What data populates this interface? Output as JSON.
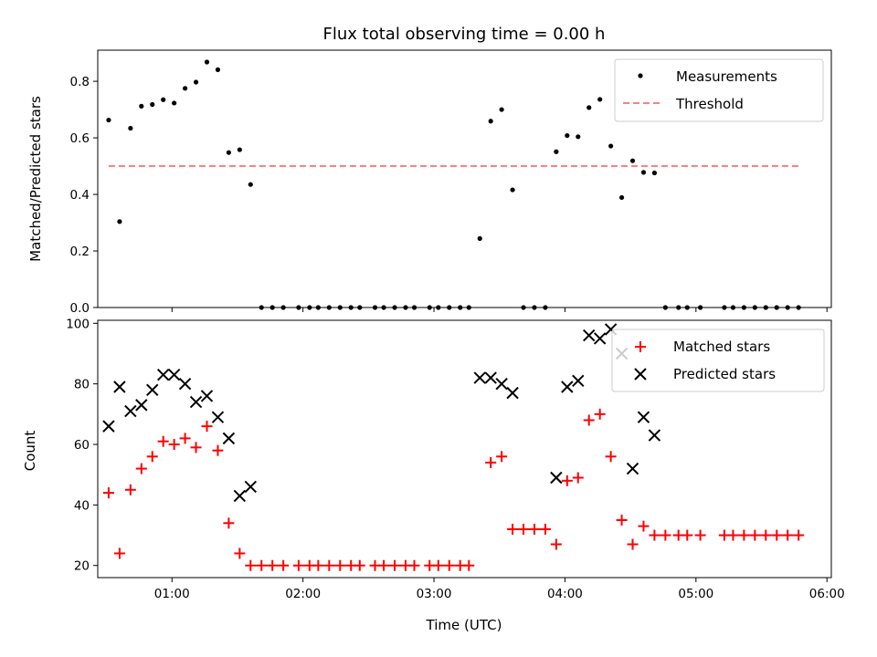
{
  "chart_data": [
    {
      "type": "scatter",
      "title": "Flux total observing time = 0.00 h",
      "xlabel": "",
      "ylabel": "Matched/Predicted stars",
      "xlim": [
        "00:26",
        "06:02"
      ],
      "ylim": [
        0,
        0.91
      ],
      "yticks": [
        0.0,
        0.2,
        0.4,
        0.6,
        0.8
      ],
      "ytick_labels": [
        "0.0",
        "0.2",
        "0.4",
        "0.6",
        "0.8"
      ],
      "xticks": [
        "01:00",
        "02:00",
        "03:00",
        "04:00",
        "05:00",
        "06:00"
      ],
      "grid": false,
      "legend_position": "top-right",
      "series": [
        {
          "name": "Measurements",
          "marker": "dot",
          "color": "#000000",
          "points": [
            [
              "00:31",
              0.663
            ],
            [
              "00:36",
              0.304
            ],
            [
              "00:41",
              0.634
            ],
            [
              "00:46",
              0.712
            ],
            [
              "00:51",
              0.718
            ],
            [
              "00:56",
              0.735
            ],
            [
              "01:01",
              0.723
            ],
            [
              "01:06",
              0.775
            ],
            [
              "01:11",
              0.797
            ],
            [
              "01:16",
              0.868
            ],
            [
              "01:21",
              0.841
            ],
            [
              "01:26",
              0.548
            ],
            [
              "01:31",
              0.558
            ],
            [
              "01:36",
              0.435
            ],
            [
              "01:41",
              0
            ],
            [
              "01:46",
              0
            ],
            [
              "01:51",
              0
            ],
            [
              "01:58",
              0
            ],
            [
              "02:03",
              0
            ],
            [
              "02:07",
              0
            ],
            [
              "02:12",
              0
            ],
            [
              "02:17",
              0
            ],
            [
              "02:22",
              0
            ],
            [
              "02:26",
              0
            ],
            [
              "02:33",
              0
            ],
            [
              "02:37",
              0
            ],
            [
              "02:42",
              0
            ],
            [
              "02:47",
              0
            ],
            [
              "02:51",
              0
            ],
            [
              "02:58",
              0
            ],
            [
              "03:02",
              0
            ],
            [
              "03:07",
              0
            ],
            [
              "03:12",
              0
            ],
            [
              "03:16",
              0
            ],
            [
              "03:21",
              0.244
            ],
            [
              "03:26",
              0.659
            ],
            [
              "03:31",
              0.7
            ],
            [
              "03:36",
              0.416
            ],
            [
              "03:41",
              0
            ],
            [
              "03:46",
              0
            ],
            [
              "03:51",
              0
            ],
            [
              "03:56",
              0.551
            ],
            [
              "04:01",
              0.608
            ],
            [
              "04:06",
              0.604
            ],
            [
              "04:11",
              0.707
            ],
            [
              "04:16",
              0.736
            ],
            [
              "04:21",
              0.571
            ],
            [
              "04:26",
              0.389
            ],
            [
              "04:31",
              0.519
            ],
            [
              "04:36",
              0.478
            ],
            [
              "04:41",
              0.476
            ],
            [
              "04:46",
              0
            ],
            [
              "04:52",
              0
            ],
            [
              "04:56",
              0
            ],
            [
              "05:02",
              0
            ],
            [
              "05:13",
              0
            ],
            [
              "05:17",
              0
            ],
            [
              "05:22",
              0
            ],
            [
              "05:27",
              0
            ],
            [
              "05:32",
              0
            ],
            [
              "05:37",
              0
            ],
            [
              "05:42",
              0
            ],
            [
              "05:47",
              0
            ]
          ]
        },
        {
          "name": "Threshold",
          "style": "dashed",
          "color": "#ff7f7f",
          "points": [
            [
              "00:31",
              0.5
            ],
            [
              "05:47",
              0.5
            ]
          ]
        }
      ]
    },
    {
      "type": "scatter",
      "title": "",
      "xlabel": "Time (UTC)",
      "ylabel": "Count",
      "xlim": [
        "00:26",
        "06:02"
      ],
      "ylim": [
        16,
        101
      ],
      "yticks": [
        20,
        40,
        60,
        80,
        100
      ],
      "ytick_labels": [
        "20",
        "40",
        "60",
        "80",
        "100"
      ],
      "xticks": [
        "01:00",
        "02:00",
        "03:00",
        "04:00",
        "05:00",
        "06:00"
      ],
      "xtick_labels": [
        "01:00",
        "02:00",
        "03:00",
        "04:00",
        "05:00",
        "06:00"
      ],
      "grid": false,
      "legend_position": "top-right",
      "series": [
        {
          "name": "Matched stars",
          "marker": "plus",
          "color": "#ff0000",
          "points": [
            [
              "00:31",
              44
            ],
            [
              "00:36",
              24
            ],
            [
              "00:41",
              45
            ],
            [
              "00:46",
              52
            ],
            [
              "00:51",
              56
            ],
            [
              "00:56",
              61
            ],
            [
              "01:01",
              60
            ],
            [
              "01:06",
              62
            ],
            [
              "01:11",
              59
            ],
            [
              "01:16",
              66
            ],
            [
              "01:21",
              58
            ],
            [
              "01:26",
              34
            ],
            [
              "01:31",
              24
            ],
            [
              "01:36",
              20
            ],
            [
              "01:41",
              20
            ],
            [
              "01:46",
              20
            ],
            [
              "01:51",
              20
            ],
            [
              "01:58",
              20
            ],
            [
              "02:03",
              20
            ],
            [
              "02:07",
              20
            ],
            [
              "02:12",
              20
            ],
            [
              "02:17",
              20
            ],
            [
              "02:22",
              20
            ],
            [
              "02:26",
              20
            ],
            [
              "02:33",
              20
            ],
            [
              "02:37",
              20
            ],
            [
              "02:42",
              20
            ],
            [
              "02:47",
              20
            ],
            [
              "02:51",
              20
            ],
            [
              "02:58",
              20
            ],
            [
              "03:02",
              20
            ],
            [
              "03:07",
              20
            ],
            [
              "03:12",
              20
            ],
            [
              "03:16",
              20
            ],
            [
              "03:26",
              54
            ],
            [
              "03:31",
              56
            ],
            [
              "03:36",
              32
            ],
            [
              "03:41",
              32
            ],
            [
              "03:46",
              32
            ],
            [
              "03:51",
              32
            ],
            [
              "03:56",
              27
            ],
            [
              "04:01",
              48
            ],
            [
              "04:06",
              49
            ],
            [
              "04:11",
              68
            ],
            [
              "04:16",
              70
            ],
            [
              "04:21",
              56
            ],
            [
              "04:26",
              35
            ],
            [
              "04:31",
              27
            ],
            [
              "04:36",
              33
            ],
            [
              "04:41",
              30
            ],
            [
              "04:46",
              30
            ],
            [
              "04:52",
              30
            ],
            [
              "04:56",
              30
            ],
            [
              "05:02",
              30
            ],
            [
              "05:13",
              30
            ],
            [
              "05:17",
              30
            ],
            [
              "05:22",
              30
            ],
            [
              "05:27",
              30
            ],
            [
              "05:32",
              30
            ],
            [
              "05:37",
              30
            ],
            [
              "05:42",
              30
            ],
            [
              "05:47",
              30
            ]
          ]
        },
        {
          "name": "Predicted stars",
          "marker": "x",
          "color": "#000000",
          "points": [
            [
              "00:31",
              66
            ],
            [
              "00:36",
              79
            ],
            [
              "00:41",
              71
            ],
            [
              "00:46",
              73
            ],
            [
              "00:51",
              78
            ],
            [
              "00:56",
              83
            ],
            [
              "01:01",
              83
            ],
            [
              "01:06",
              80
            ],
            [
              "01:11",
              74
            ],
            [
              "01:16",
              76
            ],
            [
              "01:21",
              69
            ],
            [
              "01:26",
              62
            ],
            [
              "01:31",
              43
            ],
            [
              "01:36",
              46
            ],
            [
              "03:21",
              82
            ],
            [
              "03:26",
              82
            ],
            [
              "03:31",
              80
            ],
            [
              "03:36",
              77
            ],
            [
              "03:56",
              49
            ],
            [
              "04:01",
              79
            ],
            [
              "04:06",
              81
            ],
            [
              "04:11",
              96
            ],
            [
              "04:16",
              95
            ],
            [
              "04:21",
              98
            ],
            [
              "04:26",
              90
            ],
            [
              "04:31",
              52
            ],
            [
              "04:36",
              69
            ],
            [
              "04:41",
              63
            ]
          ]
        }
      ]
    }
  ]
}
